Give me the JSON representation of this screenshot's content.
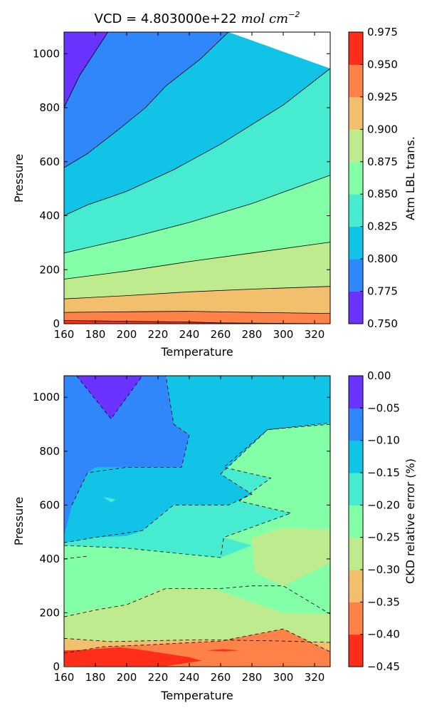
{
  "chart_data": [
    {
      "type": "contour",
      "title_text": "VCD = 4.803000e+22",
      "title_math": "mol cm",
      "title_exponent": "−2",
      "xlabel": "Temperature",
      "ylabel": "Pressure",
      "xlim": [
        160,
        330
      ],
      "ylim": [
        0,
        1080
      ],
      "xticks": [
        "160",
        "180",
        "200",
        "220",
        "240",
        "260",
        "280",
        "300",
        "320"
      ],
      "yticks": [
        "0",
        "200",
        "400",
        "600",
        "800",
        "1000"
      ],
      "colorbar_label": "Atm LBL trans.",
      "levels": [
        "0.750",
        "0.775",
        "0.800",
        "0.825",
        "0.850",
        "0.875",
        "0.900",
        "0.925",
        "0.950",
        "0.975"
      ],
      "colors": [
        "#6a33ff",
        "#3086fb",
        "#12c3e8",
        "#47ecd0",
        "#83ffa7",
        "#bdeb8d",
        "#f2c06c",
        "#ff8248",
        "#ff2e1a"
      ],
      "boundaries": [
        {
          "x": [
            160,
            330
          ],
          "y": [
            0,
            0
          ]
        },
        {
          "x": [
            160,
            200,
            240,
            260,
            330
          ],
          "y": [
            12,
            9,
            6,
            3,
            0
          ]
        },
        {
          "x": [
            160,
            200,
            240,
            280,
            330
          ],
          "y": [
            42,
            44,
            46,
            42,
            38
          ]
        },
        {
          "x": [
            160,
            200,
            240,
            280,
            330
          ],
          "y": [
            92,
            104,
            118,
            128,
            138
          ]
        },
        {
          "x": [
            160,
            200,
            240,
            280,
            330
          ],
          "y": [
            165,
            195,
            230,
            262,
            302
          ]
        },
        {
          "x": [
            160,
            200,
            240,
            280,
            330
          ],
          "y": [
            262,
            315,
            375,
            445,
            550
          ]
        },
        {
          "x": [
            160,
            175,
            200,
            230,
            260,
            300,
            330
          ],
          "y": [
            400,
            440,
            490,
            570,
            665,
            810,
            945
          ]
        },
        {
          "x": [
            160,
            175,
            195,
            212,
            225,
            247,
            265
          ],
          "y": [
            578,
            630,
            720,
            800,
            880,
            980,
            1080
          ]
        },
        {
          "x": [
            160,
            170,
            188
          ],
          "y": [
            800,
            920,
            1080
          ]
        },
        {
          "x": [
            160,
            330
          ],
          "y": [
            1080,
            1080
          ]
        }
      ]
    },
    {
      "type": "contour",
      "xlabel": "Temperature",
      "ylabel": "Pressure",
      "xlim": [
        160,
        330
      ],
      "ylim": [
        0,
        1080
      ],
      "xticks": [
        "160",
        "180",
        "200",
        "220",
        "240",
        "260",
        "280",
        "300",
        "320"
      ],
      "yticks": [
        "0",
        "200",
        "400",
        "600",
        "800",
        "1000"
      ],
      "colorbar_label": "CKD relative error (%)",
      "levels": [
        "0.00",
        "−0.05",
        "−0.10",
        "−0.15",
        "−0.20",
        "−0.25",
        "−0.30",
        "−0.35",
        "−0.40",
        "−0.45"
      ],
      "colors": [
        "#ff2e1a",
        "#ff8248",
        "#f2c06c",
        "#bdeb8d",
        "#83ffa7",
        "#47ecd0",
        "#12c3e8",
        "#3086fb",
        "#6a33ff"
      ],
      "base_fill": "#83ffa7",
      "regions": [
        {
          "level": 4,
          "points": [
            [
              160,
              0
            ],
            [
              330,
              0
            ],
            [
              330,
              1080
            ],
            [
              160,
              1080
            ]
          ]
        },
        {
          "level": 3,
          "points": [
            [
              160,
              0
            ],
            [
              330,
              0
            ],
            [
              330,
              195
            ],
            [
              300,
              200
            ],
            [
              280,
              240
            ],
            [
              255,
              290
            ],
            [
              222,
              290
            ],
            [
              200,
              230
            ],
            [
              175,
              210
            ],
            [
              160,
              185
            ]
          ]
        },
        {
          "level": 3,
          "points": [
            [
              280,
              480
            ],
            [
              300,
              515
            ],
            [
              330,
              510
            ],
            [
              330,
              385
            ],
            [
              300,
              300
            ],
            [
              282,
              350
            ]
          ]
        },
        {
          "level": 2,
          "points": [
            [
              160,
              0
            ],
            [
              330,
              0
            ],
            [
              330,
              90
            ],
            [
              300,
              95
            ],
            [
              250,
              100
            ],
            [
              220,
              97
            ],
            [
              190,
              93
            ],
            [
              160,
              105
            ]
          ]
        },
        {
          "level": 1,
          "points": [
            [
              160,
              0
            ],
            [
              330,
              0
            ],
            [
              330,
              55
            ],
            [
              300,
              140
            ],
            [
              260,
              95
            ],
            [
              210,
              80
            ],
            [
              185,
              74
            ],
            [
              160,
              50
            ]
          ]
        },
        {
          "level": 0,
          "points": [
            [
              160,
              3
            ],
            [
              185,
              2
            ],
            [
              225,
              2
            ],
            [
              248,
              22
            ],
            [
              240,
              35
            ],
            [
              210,
              62
            ],
            [
              195,
              72
            ],
            [
              175,
              63
            ],
            [
              160,
              60
            ]
          ]
        },
        {
          "level": 0,
          "points": [
            [
              251,
              60
            ],
            [
              262,
              65
            ],
            [
              272,
              60
            ],
            [
              262,
              56
            ]
          ]
        },
        {
          "level": 5,
          "points": [
            [
              160,
              450
            ],
            [
              180,
              445
            ],
            [
              200,
              440
            ],
            [
              225,
              425
            ],
            [
              260,
              405
            ],
            [
              280,
              450
            ],
            [
              262,
              480
            ],
            [
              305,
              570
            ],
            [
              272,
              615
            ],
            [
              292,
              700
            ],
            [
              262,
              740
            ],
            [
              290,
              880
            ],
            [
              330,
              900
            ],
            [
              330,
              1080
            ],
            [
              160,
              1080
            ]
          ]
        },
        {
          "level": 6,
          "points": [
            [
              160,
              460
            ],
            [
              180,
              480
            ],
            [
              200,
              485
            ],
            [
              210,
              505
            ],
            [
              230,
              600
            ],
            [
              265,
              600
            ],
            [
              280,
              640
            ],
            [
              260,
              715
            ],
            [
              290,
              880
            ],
            [
              330,
              905
            ],
            [
              330,
              1080
            ],
            [
              160,
              1080
            ]
          ]
        },
        {
          "level": 5,
          "points": [
            [
              185,
              630
            ],
            [
              190,
              610
            ],
            [
              193,
              620
            ],
            [
              190,
              625
            ]
          ]
        },
        {
          "level": 7,
          "points": [
            [
              160,
              485
            ],
            [
              165,
              600
            ],
            [
              175,
              720
            ],
            [
              180,
              740
            ],
            [
              200,
              740
            ],
            [
              235,
              740
            ],
            [
              240,
              860
            ],
            [
              230,
              900
            ],
            [
              225,
              1080
            ],
            [
              160,
              1080
            ]
          ]
        },
        {
          "level": 8,
          "points": [
            [
              168,
              1080
            ],
            [
              190,
              920
            ],
            [
              210,
              1080
            ]
          ]
        }
      ],
      "dashed_lines": [
        {
          "x": [
            160,
            180,
            200,
            225,
            260,
            280,
            300,
            330
          ],
          "y": [
            185,
            210,
            230,
            290,
            290,
            300,
            300,
            195
          ]
        },
        {
          "x": [
            160,
            190,
            220,
            250,
            300,
            330
          ],
          "y": [
            105,
            93,
            97,
            100,
            95,
            90
          ]
        },
        {
          "x": [
            160,
            185,
            210,
            260,
            300,
            330
          ],
          "y": [
            50,
            74,
            80,
            95,
            140,
            55
          ]
        },
        {
          "x": [
            160,
            200,
            225,
            260,
            262,
            305,
            272,
            292,
            262,
            290,
            330
          ],
          "y": [
            450,
            440,
            425,
            405,
            480,
            570,
            615,
            700,
            740,
            880,
            900
          ]
        },
        {
          "x": [
            160,
            180,
            210,
            230,
            265,
            280,
            260,
            290,
            330
          ],
          "y": [
            460,
            480,
            505,
            600,
            600,
            640,
            715,
            880,
            905
          ]
        },
        {
          "x": [
            165,
            175,
            200,
            235,
            240,
            230,
            225
          ],
          "y": [
            600,
            720,
            740,
            740,
            860,
            900,
            1080
          ]
        },
        {
          "x": [
            168,
            190,
            210
          ],
          "y": [
            1080,
            920,
            1080
          ]
        },
        {
          "x": [
            160,
            175
          ],
          "y": [
            400,
            410
          ]
        }
      ]
    }
  ]
}
